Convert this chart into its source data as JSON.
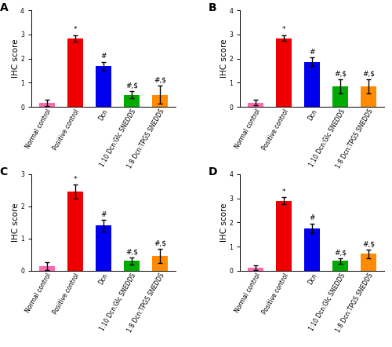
{
  "panels": [
    {
      "label": "A",
      "ylabel": "IHC score",
      "ylim": [
        0,
        4
      ],
      "yticks": [
        0,
        1,
        2,
        3,
        4
      ],
      "categories": [
        "Normal control",
        "Positive control",
        "Dcn",
        "1:10 Dcn:Glc SNEDDS",
        "1:8 Dcn:TPGS SNEDDS"
      ],
      "values": [
        0.17,
        2.85,
        1.68,
        0.5,
        0.5
      ],
      "errors": [
        0.12,
        0.13,
        0.18,
        0.15,
        0.38
      ],
      "colors": [
        "#FF69B4",
        "#EE0000",
        "#0000EE",
        "#00AA00",
        "#FF8C00"
      ],
      "annotations": [
        "",
        "*",
        "#",
        "#,$",
        "#,$"
      ]
    },
    {
      "label": "B",
      "ylabel": "IHC score",
      "ylim": [
        0,
        4
      ],
      "yticks": [
        0,
        1,
        2,
        3,
        4
      ],
      "categories": [
        "Normal control",
        "Positive control",
        "Dcn",
        "1:10 Dcn:Glc SNEDDS",
        "1:8 Dcn:TPGS SNEDDS"
      ],
      "values": [
        0.17,
        2.85,
        1.87,
        0.85,
        0.85
      ],
      "errors": [
        0.11,
        0.12,
        0.17,
        0.28,
        0.28
      ],
      "colors": [
        "#FF69B4",
        "#EE0000",
        "#0000EE",
        "#00AA00",
        "#FF8C00"
      ],
      "annotations": [
        "",
        "*",
        "#",
        "#,$",
        "#,$"
      ]
    },
    {
      "label": "C",
      "ylabel": "IHC score",
      "ylim": [
        0,
        3
      ],
      "yticks": [
        0,
        1,
        2,
        3
      ],
      "categories": [
        "Normal control",
        "Positive control",
        "Dcn",
        "1:10 Dcn:Glc SNEDDS",
        "1:8 Dcn:TPGS SNEDDS"
      ],
      "values": [
        0.15,
        2.45,
        1.4,
        0.3,
        0.45
      ],
      "errors": [
        0.12,
        0.22,
        0.18,
        0.1,
        0.22
      ],
      "colors": [
        "#FF69B4",
        "#EE0000",
        "#0000EE",
        "#00AA00",
        "#FF8C00"
      ],
      "annotations": [
        "",
        "*",
        "#",
        "#,$",
        "#,$"
      ]
    },
    {
      "label": "D",
      "ylabel": "IHC score",
      "ylim": [
        0,
        4
      ],
      "yticks": [
        0,
        1,
        2,
        3,
        4
      ],
      "categories": [
        "Normal control",
        "Positive control",
        "Dcn",
        "1:10 Dcn:Glc SNEDDS",
        "1:8 Dcn:TPGS SNEDDS"
      ],
      "values": [
        0.12,
        2.9,
        1.75,
        0.4,
        0.7
      ],
      "errors": [
        0.09,
        0.15,
        0.2,
        0.1,
        0.18
      ],
      "colors": [
        "#FF69B4",
        "#EE0000",
        "#0000EE",
        "#00AA00",
        "#FF8C00"
      ],
      "annotations": [
        "",
        "*",
        "#",
        "#,$",
        "#,$"
      ]
    }
  ],
  "bar_width": 0.55,
  "tick_fontsize": 5.5,
  "label_fontsize": 7.5,
  "annot_fontsize": 6.5,
  "panel_label_fontsize": 10,
  "background_color": "#FFFFFF",
  "error_capsize": 2,
  "error_linewidth": 1.0,
  "rotation": 60
}
